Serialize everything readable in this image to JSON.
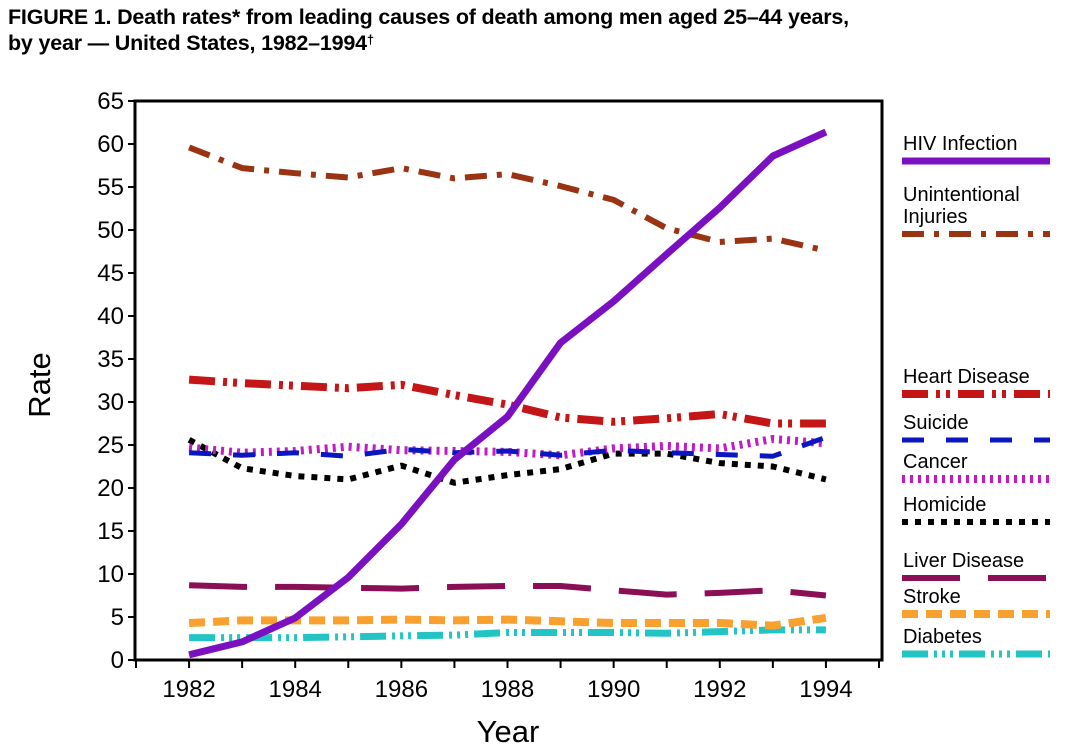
{
  "chart_data": {
    "type": "line",
    "title_line1": "FIGURE 1. Death rates* from leading causes of death among men aged 25–44 years,",
    "title_line2": "by year — United States, 1982–1994",
    "title_mark": "†",
    "xlabel": "Year",
    "ylabel": "Rate",
    "xlim": [
      1981,
      1995
    ],
    "ylim": [
      0,
      65
    ],
    "x": [
      1982,
      1983,
      1984,
      1985,
      1986,
      1987,
      1988,
      1989,
      1990,
      1991,
      1992,
      1993,
      1994
    ],
    "x_ticks": [
      1981,
      1982,
      1983,
      1984,
      1985,
      1986,
      1987,
      1988,
      1989,
      1990,
      1991,
      1992,
      1993,
      1994,
      1995
    ],
    "x_tick_labels": [
      "1982",
      "1984",
      "1986",
      "1988",
      "1990",
      "1992",
      "1994"
    ],
    "x_tick_label_values": [
      1982,
      1984,
      1986,
      1988,
      1990,
      1992,
      1994
    ],
    "y_ticks": [
      0,
      5,
      10,
      15,
      20,
      25,
      30,
      35,
      40,
      45,
      50,
      55,
      60,
      65
    ],
    "y_tick_labels": [
      "0",
      "5",
      "10",
      "15",
      "20",
      "25",
      "30",
      "35",
      "40",
      "45",
      "50",
      "55",
      "60",
      "65"
    ],
    "grid": false,
    "legend_position": "right",
    "series": [
      {
        "name": "HIV Infection",
        "legend_lines": [
          "HIV Infection"
        ],
        "color": "#7a10c0",
        "style": "solid",
        "values": [
          0.6,
          2.1,
          4.9,
          9.6,
          15.8,
          23.3,
          28.3,
          36.9,
          41.7,
          47.2,
          52.6,
          58.6,
          61.4
        ]
      },
      {
        "name": "Unintentional Injuries",
        "legend_lines": [
          "Unintentional",
          " Injuries"
        ],
        "color": "#993311",
        "style": "dashdot",
        "values": [
          59.6,
          57.2,
          56.6,
          56.1,
          57.2,
          56.0,
          56.5,
          55.1,
          53.5,
          50.2,
          48.6,
          49.0,
          47.6
        ]
      },
      {
        "name": "Heart Disease",
        "legend_lines": [
          "Heart Disease"
        ],
        "color": "#c41616",
        "style": "dashdotdot",
        "values": [
          32.6,
          32.2,
          31.9,
          31.6,
          32.0,
          30.8,
          29.7,
          28.2,
          27.7,
          28.1,
          28.6,
          27.5,
          27.5
        ]
      },
      {
        "name": "Suicide",
        "legend_lines": [
          "Suicide"
        ],
        "color": "#0a16c0",
        "style": "longdash",
        "values": [
          24.1,
          23.8,
          24.1,
          23.7,
          24.5,
          24.1,
          24.3,
          23.8,
          24.4,
          24.1,
          23.9,
          23.7,
          25.9
        ]
      },
      {
        "name": "Cancer",
        "legend_lines": [
          "Cancer"
        ],
        "color": "#c21ac4",
        "style": "dotted",
        "values": [
          24.7,
          24.1,
          24.3,
          24.8,
          24.4,
          24.3,
          24.2,
          23.8,
          24.6,
          24.9,
          24.6,
          25.7,
          25.2
        ]
      },
      {
        "name": "Homicide",
        "legend_lines": [
          "Homicide"
        ],
        "color": "#000000",
        "style": "squaredot",
        "values": [
          25.6,
          22.3,
          21.4,
          21.0,
          22.6,
          20.6,
          21.5,
          22.2,
          24.0,
          24.0,
          22.9,
          22.5,
          21.0
        ]
      },
      {
        "name": "Liver Disease",
        "legend_lines": [
          "Liver Disease"
        ],
        "color": "#8a0f55",
        "style": "longgap",
        "values": [
          8.7,
          8.5,
          8.5,
          8.4,
          8.3,
          8.5,
          8.6,
          8.6,
          8.1,
          7.6,
          7.8,
          8.1,
          7.5
        ]
      },
      {
        "name": "Stroke",
        "legend_lines": [
          "Stroke"
        ],
        "color": "#f9a02e",
        "style": "dashed",
        "values": [
          4.3,
          4.6,
          4.6,
          4.6,
          4.7,
          4.6,
          4.7,
          4.5,
          4.3,
          4.3,
          4.3,
          4.0,
          4.9
        ]
      },
      {
        "name": "Diabetes",
        "legend_lines": [
          "Diabetes"
        ],
        "color": "#22c4c4",
        "style": "dashdotdotdot",
        "values": [
          2.6,
          2.6,
          2.6,
          2.7,
          2.8,
          2.9,
          3.2,
          3.2,
          3.2,
          3.1,
          3.3,
          3.5,
          3.5
        ]
      }
    ]
  }
}
